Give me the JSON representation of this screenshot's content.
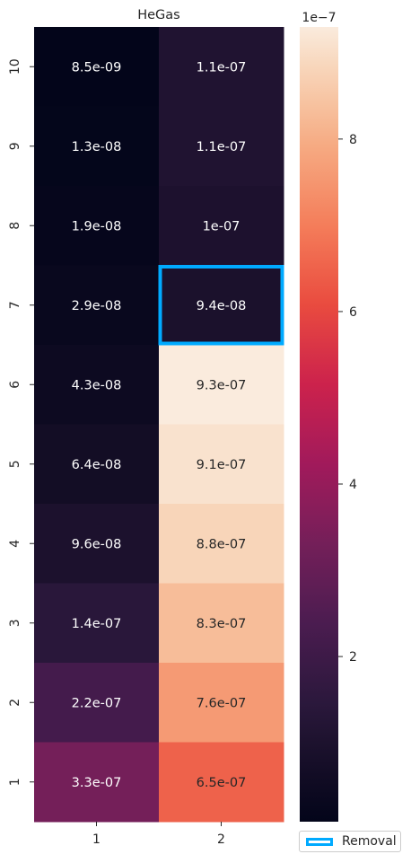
{
  "chart_data": {
    "type": "heatmap",
    "title": "HeGas",
    "xlabel": "",
    "ylabel": "",
    "x_categories": [
      "1",
      "2"
    ],
    "y_categories_top_to_bottom": [
      "10",
      "9",
      "8",
      "7",
      "6",
      "5",
      "4",
      "3",
      "2",
      "1"
    ],
    "values": [
      [
        8.5e-09,
        1.1e-07
      ],
      [
        1.3e-08,
        1.1e-07
      ],
      [
        1.9e-08,
        1e-07
      ],
      [
        2.9e-08,
        9.4e-08
      ],
      [
        4.3e-08,
        9.3e-07
      ],
      [
        6.4e-08,
        9.1e-07
      ],
      [
        9.6e-08,
        8.8e-07
      ],
      [
        1.4e-07,
        8.3e-07
      ],
      [
        2.2e-07,
        7.6e-07
      ],
      [
        3.3e-07,
        6.5e-07
      ]
    ],
    "cell_labels": [
      [
        "8.5e-09",
        "1.1e-07"
      ],
      [
        "1.3e-08",
        "1.1e-07"
      ],
      [
        "1.9e-08",
        "1e-07"
      ],
      [
        "2.9e-08",
        "9.4e-08"
      ],
      [
        "4.3e-08",
        "9.3e-07"
      ],
      [
        "6.4e-08",
        "9.1e-07"
      ],
      [
        "9.6e-08",
        "8.8e-07"
      ],
      [
        "1.4e-07",
        "8.3e-07"
      ],
      [
        "2.2e-07",
        "7.6e-07"
      ],
      [
        "3.3e-07",
        "6.5e-07"
      ]
    ],
    "colorbar": {
      "min": 8.5e-09,
      "max": 9.3e-07,
      "ticks": [
        2e-07,
        4e-07,
        6e-07,
        8e-07
      ],
      "tick_labels": [
        "2",
        "4",
        "6",
        "8"
      ],
      "offset_label": "1e−7",
      "colormap": "rocket"
    },
    "highlight": {
      "row": "7",
      "column": "2",
      "color": "#00aaff"
    },
    "legend": {
      "entries": [
        "Removal"
      ],
      "placement": "lower-right, outside"
    }
  }
}
